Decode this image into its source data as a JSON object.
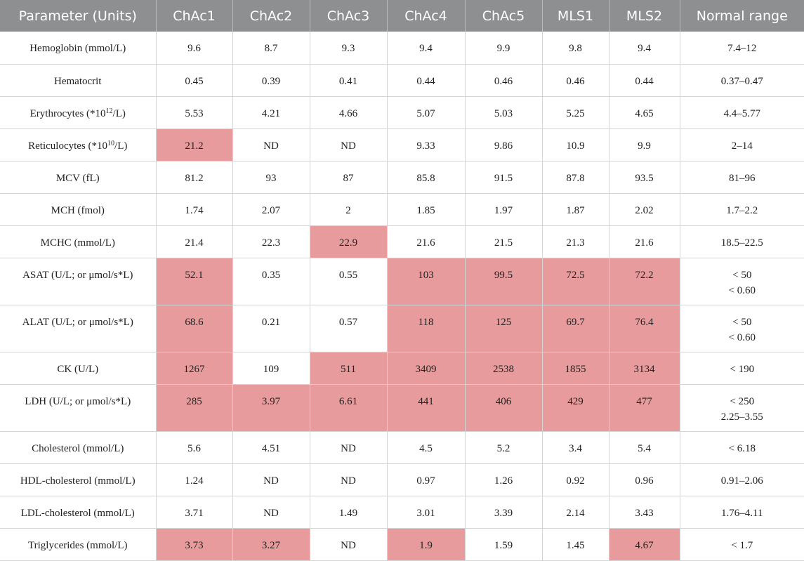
{
  "highlight_color": "#e79b9c",
  "header_color": "#8e8f91",
  "headers": [
    "Parameter (Units)",
    "ChAc1",
    "ChAc2",
    "ChAc3",
    "ChAc4",
    "ChAc5",
    "MLS1",
    "MLS2",
    "Normal range"
  ],
  "rows": [
    {
      "param": "Hemoglobin (mmol/L)",
      "values": [
        "9.6",
        "8.7",
        "9.3",
        "9.4",
        "9.9",
        "9.8",
        "9.4"
      ],
      "range": [
        "7.4–12"
      ],
      "highlight": []
    },
    {
      "param": "Hematocrit",
      "values": [
        "0.45",
        "0.39",
        "0.41",
        "0.44",
        "0.46",
        "0.46",
        "0.44"
      ],
      "range": [
        "0.37–0.47"
      ],
      "highlight": []
    },
    {
      "param_pre": "Erythrocytes (*10",
      "param_sup": "12",
      "param_post": "/L)",
      "values": [
        "5.53",
        "4.21",
        "4.66",
        "5.07",
        "5.03",
        "5.25",
        "4.65"
      ],
      "range": [
        "4.4–5.77"
      ],
      "highlight": []
    },
    {
      "param_pre": "Reticulocytes (*10",
      "param_sup": "10",
      "param_post": "/L)",
      "values": [
        "21.2",
        "ND",
        "ND",
        "9.33",
        "9.86",
        "10.9",
        "9.9"
      ],
      "range": [
        "2–14"
      ],
      "highlight": [
        0
      ]
    },
    {
      "param": "MCV (fL)",
      "values": [
        "81.2",
        "93",
        "87",
        "85.8",
        "91.5",
        "87.8",
        "93.5"
      ],
      "range": [
        "81–96"
      ],
      "highlight": []
    },
    {
      "param": "MCH (fmol)",
      "values": [
        "1.74",
        "2.07",
        "2",
        "1.85",
        "1.97",
        "1.87",
        "2.02"
      ],
      "range": [
        "1.7–2.2"
      ],
      "highlight": []
    },
    {
      "param": "MCHC (mmol/L)",
      "values": [
        "21.4",
        "22.3",
        "22.9",
        "21.6",
        "21.5",
        "21.3",
        "21.6"
      ],
      "range": [
        "18.5–22.5"
      ],
      "highlight": [
        2
      ]
    },
    {
      "param": "ASAT (U/L; or μmol/s*L)",
      "values": [
        "52.1",
        "0.35",
        "0.55",
        "103",
        "99.5",
        "72.5",
        "72.2"
      ],
      "range": [
        "< 50",
        "< 0.60"
      ],
      "highlight": [
        0,
        3,
        4,
        5,
        6
      ]
    },
    {
      "param": "ALAT (U/L; or μmol/s*L)",
      "values": [
        "68.6",
        "0.21",
        "0.57",
        "118",
        "125",
        "69.7",
        "76.4"
      ],
      "range": [
        "< 50",
        "< 0.60"
      ],
      "highlight": [
        0,
        3,
        4,
        5,
        6
      ]
    },
    {
      "param": "CK (U/L)",
      "values": [
        "1267",
        "109",
        "511",
        "3409",
        "2538",
        "1855",
        "3134"
      ],
      "range": [
        "< 190"
      ],
      "highlight": [
        0,
        2,
        3,
        4,
        5,
        6
      ]
    },
    {
      "param": "LDH (U/L; or μmol/s*L)",
      "values": [
        "285",
        "3.97",
        "6.61",
        "441",
        "406",
        "429",
        "477"
      ],
      "range": [
        "< 250",
        "2.25–3.55"
      ],
      "highlight": [
        0,
        1,
        2,
        3,
        4,
        5,
        6
      ]
    },
    {
      "param": "Cholesterol (mmol/L)",
      "values": [
        "5.6",
        "4.51",
        "ND",
        "4.5",
        "5.2",
        "3.4",
        "5.4"
      ],
      "range": [
        "< 6.18"
      ],
      "highlight": []
    },
    {
      "param": "HDL-cholesterol (mmol/L)",
      "values": [
        "1.24",
        "ND",
        "ND",
        "0.97",
        "1.26",
        "0.92",
        "0.96"
      ],
      "range": [
        "0.91–2.06"
      ],
      "highlight": []
    },
    {
      "param": "LDL-cholesterol (mmol/L)",
      "values": [
        "3.71",
        "ND",
        "1.49",
        "3.01",
        "3.39",
        "2.14",
        "3.43"
      ],
      "range": [
        "1.76–4.11"
      ],
      "highlight": []
    },
    {
      "param": "Triglycerides (mmol/L)",
      "values": [
        "3.73",
        "3.27",
        "ND",
        "1.9",
        "1.59",
        "1.45",
        "4.67"
      ],
      "range": [
        "< 1.7"
      ],
      "highlight": [
        0,
        1,
        3,
        6
      ]
    }
  ]
}
